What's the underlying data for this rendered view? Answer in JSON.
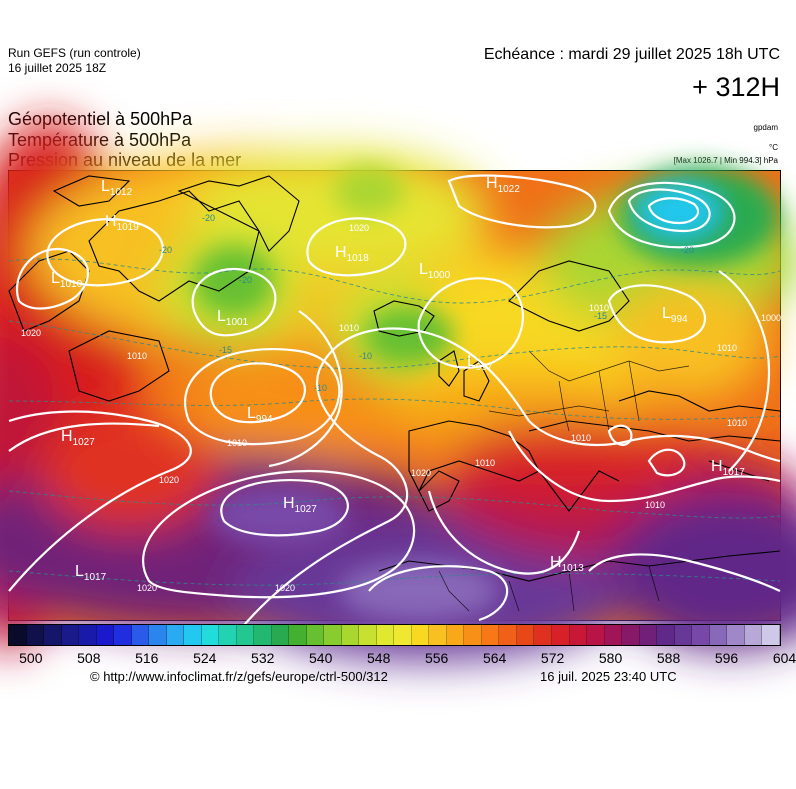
{
  "header": {
    "run_model": "Run GEFS (run controle)",
    "run_date": "16 juillet 2025 18Z",
    "valid_time": "Echéance : mardi 29 juillet 2025 18h UTC",
    "lead_time": "+ 312H"
  },
  "params": [
    "Géopotentiel à 500hPa",
    "Température à 500hPa",
    "Pression au niveau de la mer"
  ],
  "units": {
    "geopotential": "gpdam",
    "temperature": "°C",
    "pressure": "[Max 1026.7 | Min 994.3] hPa"
  },
  "map": {
    "pressure_centers": [
      {
        "type": "L",
        "value": "1012"
      },
      {
        "type": "H",
        "value": "1019"
      },
      {
        "type": "L",
        "value": "1010"
      },
      {
        "type": "L",
        "value": "1001"
      },
      {
        "type": "H",
        "value": "1018"
      },
      {
        "type": "L",
        "value": "1000"
      },
      {
        "type": "H",
        "value": "1022"
      },
      {
        "type": "L",
        "value": "994"
      },
      {
        "type": "L",
        "value": "994"
      },
      {
        "type": "L",
        "value": "997"
      },
      {
        "type": "H",
        "value": "1027"
      },
      {
        "type": "H",
        "value": "1027"
      },
      {
        "type": "L",
        "value": "1017"
      },
      {
        "type": "H",
        "value": "1013"
      },
      {
        "type": "H",
        "value": "1017"
      }
    ],
    "isobar_labels": [
      "1010",
      "1020",
      "1010",
      "1020",
      "1020",
      "1010",
      "1010",
      "1020",
      "1010",
      "1010",
      "1000",
      "1010",
      "1020",
      "1010",
      "1020",
      "1010"
    ],
    "temperature_labels": [
      "-20",
      "-20",
      "-20",
      "-15",
      "-10",
      "-10",
      "-15",
      "-20"
    ]
  },
  "colorbar": {
    "colors": [
      "#0a0a2a",
      "#10104a",
      "#15156a",
      "#1a1a8a",
      "#1a1aaa",
      "#1a1acc",
      "#1f2fe0",
      "#2a5ae8",
      "#2a86ec",
      "#2aaaf0",
      "#22c8f0",
      "#22dcdc",
      "#22d2b0",
      "#22c890",
      "#22b870",
      "#2aaa50",
      "#44b030",
      "#66c030",
      "#88cc30",
      "#aad630",
      "#c8e030",
      "#e0e830",
      "#f0e830",
      "#f8d820",
      "#f8c020",
      "#f8a818",
      "#f89018",
      "#f87818",
      "#f06018",
      "#e84818",
      "#e03020",
      "#d82028",
      "#c81838",
      "#b81448",
      "#a01458",
      "#881868",
      "#702078",
      "#602888",
      "#683898",
      "#7848a8",
      "#8868b8",
      "#a088c8",
      "#b8a8d8",
      "#d0c8e8"
    ],
    "ticks": [
      "500",
      "508",
      "516",
      "524",
      "532",
      "540",
      "548",
      "556",
      "564",
      "572",
      "580",
      "588",
      "596",
      "604"
    ]
  },
  "footer": {
    "url": "© http://www.infoclimat.fr/z/gefs/europe/ctrl-500/312",
    "generated": "16 juil. 2025 23:40 UTC"
  }
}
